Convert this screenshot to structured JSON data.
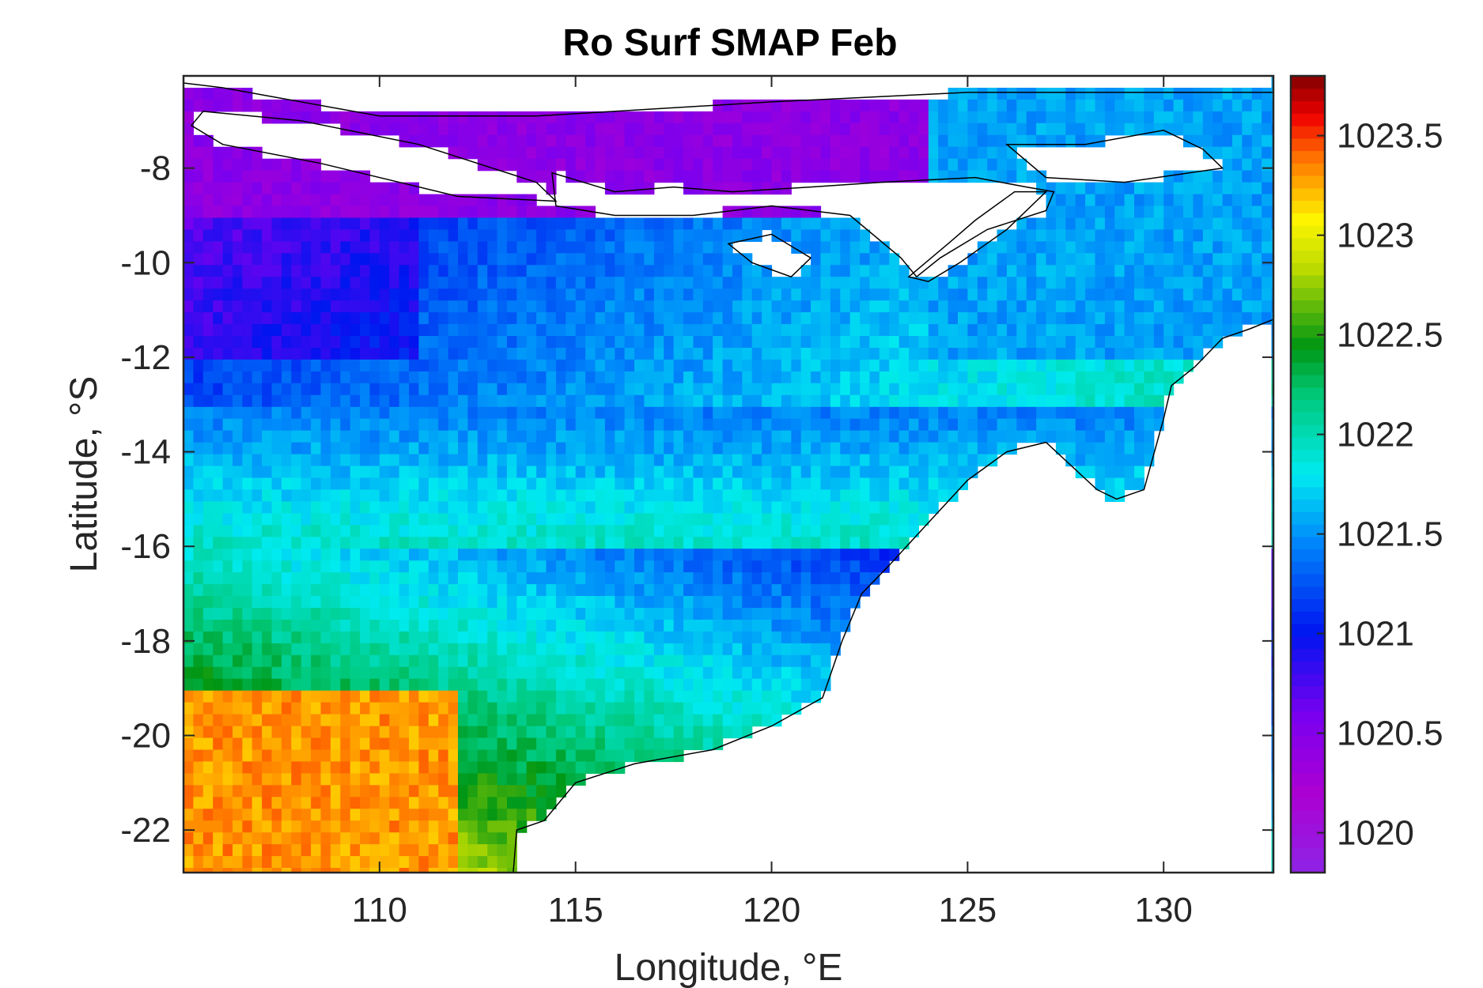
{
  "chart_data": {
    "type": "heatmap",
    "title": "Ro Surf SMAP Feb",
    "xlabel": "Longitude, °E",
    "ylabel": "Latitude, °S",
    "xlim": [
      105,
      132.8
    ],
    "ylim": [
      -22.9,
      -6.05
    ],
    "xticks": [
      110,
      115,
      120,
      125,
      130
    ],
    "xtick_labels": [
      "110",
      "115",
      "120",
      "125",
      "130"
    ],
    "yticks": [
      -8,
      -10,
      -12,
      -14,
      -16,
      -18,
      -20,
      -22
    ],
    "ytick_labels": [
      "-8",
      "-10",
      "-12",
      "-14",
      "-16",
      "-18",
      "-20",
      "-22"
    ],
    "colorbar": {
      "colormap": "jet-like (violet to dark red)",
      "range": [
        1019.8,
        1023.8
      ],
      "ticks": [
        1020,
        1020.5,
        1021,
        1021.5,
        1022,
        1022.5,
        1023,
        1023.5
      ],
      "tick_labels": [
        "1020",
        "1020.5",
        "1021",
        "1021.5",
        "1022",
        "1022.5",
        "1023",
        "1023.5"
      ]
    },
    "field_summary": [
      {
        "region": "north-west near 107-111°E, 9-10°S",
        "value": 1020.5
      },
      {
        "region": "west 105-111°E, 10-12°S",
        "value": 1021.0
      },
      {
        "region": "central band 112-122°E, 10-14°S",
        "value": 1021.5
      },
      {
        "region": "north-east Banda/Arafura 124-132°E, 8-11°S",
        "value": 1021.6
      },
      {
        "region": "band 105-122°E, 14-18°S",
        "value": 1022.0
      },
      {
        "region": "west 105-111°E, 16-19°S",
        "value": 1022.5
      },
      {
        "region": "south-west 105-112°E, 19-23°S",
        "value": 1023.3
      },
      {
        "region": "north edge 113-124°E, 6-8°S",
        "value": 1020.4
      }
    ],
    "grid": false,
    "grid_step_deg": 0.25,
    "land_color": "#ffffff",
    "coastline_color": "#000000"
  }
}
